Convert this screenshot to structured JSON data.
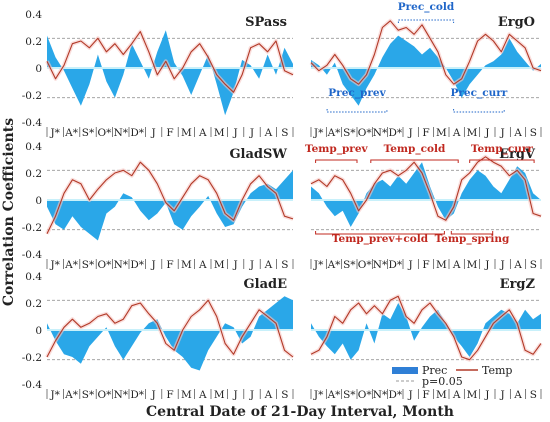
{
  "figure": {
    "ylabel": "Correlation Coefficients",
    "xlabel": "Central Date of 21-Day Interval, Month",
    "legend": {
      "prec_label": "Prec",
      "temp_label": "Temp",
      "p_label": "p=0.05",
      "placement": "bottom-right of ErgZ panel"
    },
    "colors": {
      "prec_fill": "#2aa7e8",
      "prec_highlight": "#1f66c9",
      "temp_line": "#b23a28",
      "temp_highlight": "#f7c8c4",
      "threshold": "#999999",
      "zero_line": "#c8f0fa",
      "ann_blue": "#1f66c9",
      "ann_red": "#c0281f"
    },
    "month_ticks": [
      "J*",
      "A*",
      "S*",
      "O*",
      "N*",
      "D*",
      "J",
      "F",
      "M",
      "A",
      "M",
      "J",
      "J",
      "A",
      "S"
    ]
  },
  "chart_data": [
    {
      "type": "area",
      "title": "SPass",
      "ylim": [
        -0.4,
        0.4
      ],
      "yticks": [
        "0.4",
        "0.2",
        "0",
        "-0.2",
        "-0.4"
      ],
      "threshold": 0.22,
      "annotations": [],
      "series": [
        {
          "name": "Prec",
          "type": "area",
          "values": [
            0.24,
            0.08,
            -0.02,
            -0.15,
            -0.28,
            -0.12,
            0.1,
            -0.1,
            -0.22,
            -0.05,
            0.18,
            0.05,
            -0.08,
            0.12,
            0.28,
            0.04,
            -0.06,
            -0.2,
            -0.05,
            0.1,
            -0.12,
            -0.35,
            -0.18,
            0.06,
            0.02,
            -0.08,
            0.1,
            -0.05,
            0.15,
            0.03
          ]
        },
        {
          "name": "Temp",
          "type": "line",
          "values": [
            0.05,
            -0.08,
            0.02,
            0.18,
            0.2,
            0.15,
            0.22,
            0.12,
            0.18,
            0.1,
            0.18,
            0.27,
            0.12,
            -0.05,
            0.05,
            -0.08,
            0.0,
            0.12,
            0.18,
            0.08,
            -0.05,
            -0.12,
            -0.18,
            -0.05,
            0.15,
            0.18,
            0.12,
            0.2,
            -0.02,
            -0.05
          ]
        }
      ]
    },
    {
      "type": "area",
      "title": "ErgO",
      "ylim": [
        -0.4,
        0.4
      ],
      "yticks": [
        "0.4",
        "0.2",
        "0",
        "-0.2",
        "-0.4"
      ],
      "threshold": 0.22,
      "annotations": [
        {
          "text": "Prec_cold",
          "color": "blue",
          "anchor": "top"
        },
        {
          "text": "Prec_prev",
          "color": "blue",
          "anchor": "bottom"
        },
        {
          "text": "Prec_curr",
          "color": "blue",
          "anchor": "bottom"
        }
      ],
      "series": [
        {
          "name": "Prec",
          "type": "area",
          "values": [
            0.06,
            0.02,
            -0.05,
            0.04,
            -0.12,
            -0.2,
            -0.28,
            -0.15,
            -0.05,
            0.08,
            0.18,
            0.24,
            0.2,
            0.16,
            0.1,
            0.15,
            0.08,
            0.0,
            -0.1,
            -0.22,
            -0.12,
            -0.05,
            0.02,
            0.05,
            0.1,
            0.22,
            0.12,
            0.05,
            -0.02,
            0.03
          ]
        },
        {
          "name": "Temp",
          "type": "line",
          "values": [
            0.04,
            -0.02,
            0.02,
            0.1,
            0.02,
            -0.08,
            -0.12,
            -0.05,
            0.1,
            0.3,
            0.35,
            0.28,
            0.3,
            0.25,
            0.32,
            0.22,
            0.12,
            -0.05,
            -0.12,
            -0.08,
            0.05,
            0.2,
            0.25,
            0.2,
            0.12,
            0.25,
            0.2,
            0.15,
            0.0,
            -0.02
          ]
        }
      ]
    },
    {
      "type": "area",
      "title": "GladSW",
      "ylim": [
        -0.4,
        0.4
      ],
      "yticks": [
        "0.4",
        "0.2",
        "0",
        "-0.2",
        "-0.4"
      ],
      "threshold": 0.22,
      "annotations": [],
      "series": [
        {
          "name": "Prec",
          "type": "area",
          "values": [
            -0.05,
            -0.18,
            -0.22,
            -0.12,
            -0.2,
            -0.25,
            -0.3,
            -0.1,
            -0.05,
            0.05,
            0.02,
            -0.08,
            -0.15,
            -0.1,
            -0.02,
            -0.18,
            -0.22,
            -0.12,
            -0.05,
            0.03,
            -0.1,
            -0.2,
            -0.18,
            -0.05,
            0.05,
            0.1,
            0.12,
            0.08,
            0.15,
            0.22
          ]
        },
        {
          "name": "Temp",
          "type": "line",
          "values": [
            -0.25,
            -0.12,
            0.05,
            0.15,
            0.12,
            0.0,
            0.08,
            0.15,
            0.2,
            0.22,
            0.18,
            0.28,
            0.22,
            0.12,
            -0.02,
            -0.08,
            0.02,
            0.12,
            0.18,
            0.15,
            0.05,
            -0.1,
            -0.15,
            0.0,
            0.12,
            0.18,
            0.1,
            0.05,
            -0.12,
            -0.14
          ]
        }
      ]
    },
    {
      "type": "area",
      "title": "ErgV",
      "ylim": [
        -0.4,
        0.4
      ],
      "yticks": [
        "0.4",
        "0.2",
        "0",
        "-0.2",
        "-0.4"
      ],
      "threshold": 0.22,
      "annotations": [
        {
          "text": "Temp_prev",
          "color": "red",
          "anchor": "top"
        },
        {
          "text": "Temp_cold",
          "color": "red",
          "anchor": "top"
        },
        {
          "text": "Temp_curr",
          "color": "red",
          "anchor": "top"
        },
        {
          "text": "Temp_prev+cold",
          "color": "red",
          "anchor": "bottom"
        },
        {
          "text": "Temp_spring",
          "color": "red",
          "anchor": "bottom"
        }
      ],
      "series": [
        {
          "name": "Prec",
          "type": "area",
          "values": [
            0.1,
            0.05,
            -0.05,
            -0.12,
            -0.08,
            -0.2,
            -0.1,
            0.05,
            0.12,
            0.15,
            0.1,
            0.18,
            0.12,
            0.2,
            0.28,
            0.1,
            -0.05,
            -0.15,
            -0.1,
            0.05,
            0.15,
            0.22,
            0.18,
            0.1,
            0.05,
            0.15,
            0.25,
            0.2,
            0.05,
            0.0
          ]
        },
        {
          "name": "Temp",
          "type": "line",
          "values": [
            0.12,
            0.15,
            0.1,
            0.18,
            0.15,
            0.05,
            -0.08,
            0.0,
            0.12,
            0.2,
            0.22,
            0.18,
            0.22,
            0.28,
            0.2,
            0.05,
            -0.12,
            -0.15,
            -0.05,
            0.15,
            0.2,
            0.28,
            0.32,
            0.28,
            0.25,
            0.18,
            0.22,
            0.15,
            -0.1,
            -0.12
          ]
        }
      ]
    },
    {
      "type": "area",
      "title": "GladE",
      "ylim": [
        -0.4,
        0.4
      ],
      "yticks": [
        "0.4",
        "0.2",
        "0",
        "-0.2",
        "-0.4"
      ],
      "threshold": 0.22,
      "annotations": [],
      "series": [
        {
          "name": "Prec",
          "type": "area",
          "values": [
            0.05,
            -0.08,
            -0.18,
            -0.2,
            -0.25,
            -0.12,
            -0.05,
            0.02,
            -0.12,
            -0.22,
            -0.12,
            -0.02,
            0.05,
            0.08,
            -0.05,
            -0.15,
            -0.2,
            -0.28,
            -0.3,
            -0.15,
            -0.05,
            0.05,
            0.02,
            -0.1,
            -0.05,
            0.1,
            0.15,
            0.2,
            0.25,
            0.22
          ]
        },
        {
          "name": "Temp",
          "type": "line",
          "values": [
            -0.2,
            -0.08,
            0.02,
            0.08,
            0.02,
            0.05,
            0.1,
            0.12,
            0.05,
            0.08,
            0.18,
            0.2,
            0.12,
            0.05,
            -0.1,
            -0.15,
            0.0,
            0.1,
            0.15,
            0.22,
            0.1,
            -0.1,
            -0.18,
            -0.05,
            0.05,
            0.15,
            0.1,
            0.05,
            -0.15,
            -0.2
          ]
        }
      ]
    },
    {
      "type": "area",
      "title": "ErgZ",
      "ylim": [
        -0.4,
        0.4
      ],
      "yticks": [
        "0.4",
        "0.2",
        "0",
        "-0.2",
        "-0.4"
      ],
      "threshold": 0.22,
      "annotations": [],
      "series": [
        {
          "name": "Prec",
          "type": "area",
          "values": [
            0.05,
            -0.05,
            -0.12,
            -0.18,
            -0.1,
            -0.22,
            -0.15,
            0.05,
            -0.1,
            0.12,
            0.08,
            0.2,
            0.1,
            -0.08,
            0.02,
            0.1,
            0.15,
            0.05,
            -0.05,
            -0.12,
            -0.2,
            -0.1,
            0.05,
            0.1,
            0.15,
            0.12,
            0.05,
            0.15,
            0.08,
            0.12
          ]
        },
        {
          "name": "Temp",
          "type": "line",
          "values": [
            -0.18,
            -0.15,
            -0.05,
            0.1,
            0.05,
            0.15,
            0.2,
            0.12,
            0.18,
            0.12,
            0.22,
            0.25,
            0.1,
            0.05,
            0.15,
            0.2,
            0.12,
            0.05,
            -0.05,
            -0.2,
            -0.22,
            -0.15,
            -0.05,
            0.05,
            0.1,
            0.15,
            0.05,
            -0.15,
            -0.18,
            -0.1
          ]
        }
      ]
    }
  ]
}
